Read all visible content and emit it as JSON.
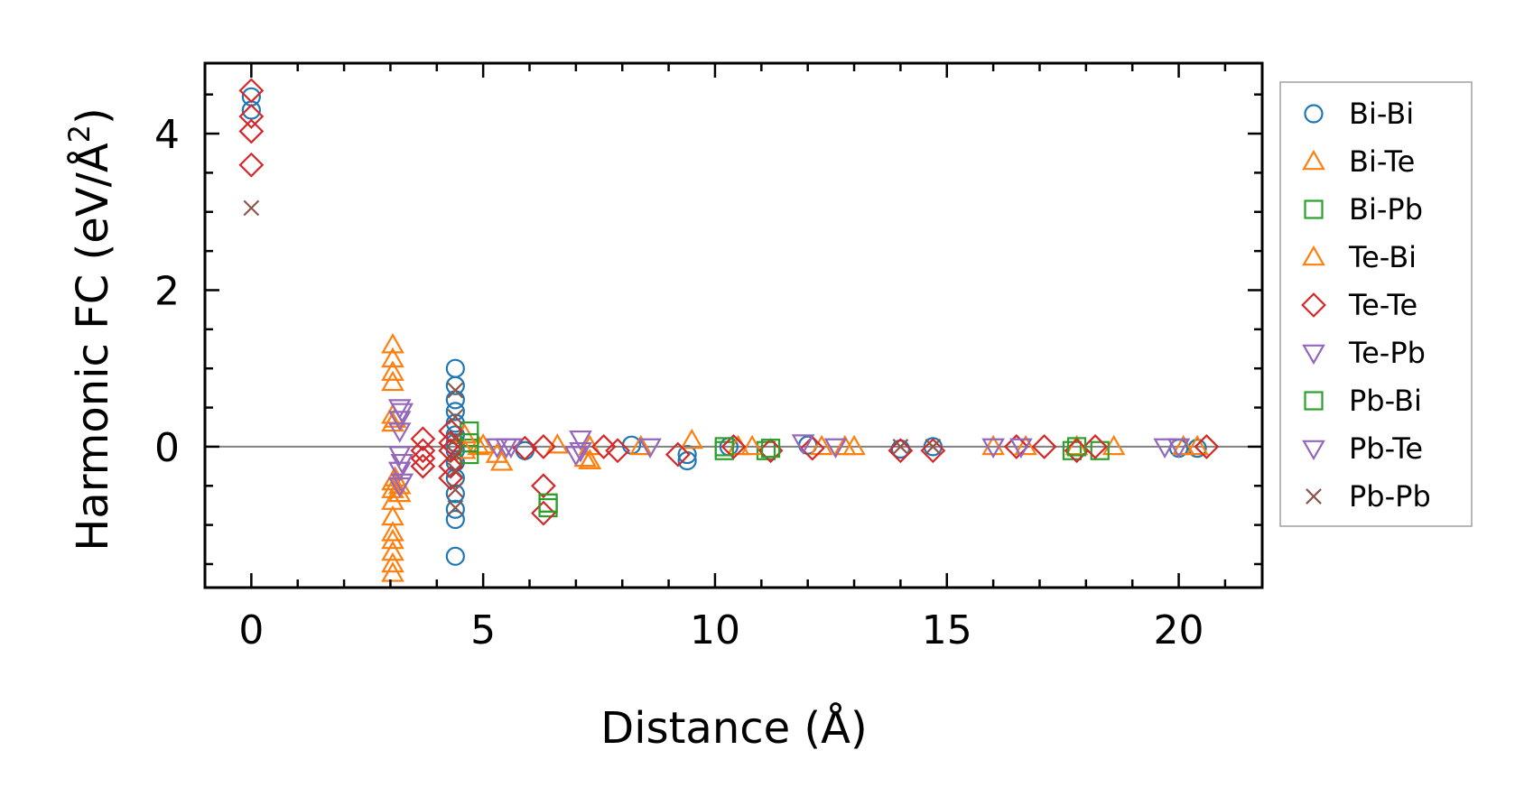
{
  "chart_data": {
    "type": "scatter",
    "xlabel": "Distance (Å)",
    "ylabel_prefix": "Harmonic FC (eV/Å",
    "ylabel_exp": "2",
    "ylabel_suffix": ")",
    "xlim": [
      -1.0,
      21.8
    ],
    "ylim": [
      -1.8,
      4.9
    ],
    "xticks": [
      0,
      5,
      10,
      15,
      20
    ],
    "yticks": [
      0,
      2,
      4
    ],
    "xtick_labels": [
      "0",
      "5",
      "10",
      "15",
      "20"
    ],
    "ytick_labels": [
      "0",
      "2",
      "4"
    ],
    "x_minor_step": 1,
    "y_minor_step": 0.5,
    "zero_line": true,
    "legend_position": "outside right",
    "series": [
      {
        "name": "Bi-Bi",
        "marker": "circle",
        "color": "#1f77b4",
        "points": [
          [
            0,
            4.47
          ],
          [
            0,
            4.3
          ],
          [
            4.4,
            1.0
          ],
          [
            4.4,
            0.78
          ],
          [
            4.4,
            0.6
          ],
          [
            4.4,
            0.45
          ],
          [
            4.4,
            0.3
          ],
          [
            4.4,
            0.15
          ],
          [
            4.4,
            0.05
          ],
          [
            4.4,
            -0.05
          ],
          [
            4.4,
            -0.2
          ],
          [
            4.4,
            -0.4
          ],
          [
            4.4,
            -0.6
          ],
          [
            4.4,
            -0.8
          ],
          [
            4.4,
            -0.93
          ],
          [
            4.4,
            -1.4
          ],
          [
            5.9,
            -0.05
          ],
          [
            8.2,
            0.02
          ],
          [
            9.4,
            -0.18
          ],
          [
            9.4,
            -0.1
          ],
          [
            10.3,
            0.0
          ],
          [
            12.0,
            0.02
          ],
          [
            14.0,
            -0.03
          ],
          [
            14.7,
            0.0
          ],
          [
            20.0,
            -0.02
          ],
          [
            20.4,
            -0.02
          ]
        ]
      },
      {
        "name": "Bi-Te",
        "marker": "triangle-up",
        "color": "#ff7f0e",
        "points": [
          [
            3.05,
            1.3
          ],
          [
            3.05,
            1.12
          ],
          [
            3.05,
            0.95
          ],
          [
            3.05,
            0.82
          ],
          [
            3.05,
            0.4
          ],
          [
            3.05,
            0.3
          ],
          [
            3.05,
            -0.45
          ],
          [
            3.05,
            -0.55
          ],
          [
            3.05,
            -0.7
          ],
          [
            3.05,
            -0.9
          ],
          [
            3.05,
            -1.1
          ],
          [
            3.05,
            -1.2
          ],
          [
            3.05,
            -1.35
          ],
          [
            3.05,
            -1.5
          ],
          [
            3.05,
            -1.62
          ],
          [
            3.2,
            -0.5
          ],
          [
            3.2,
            -0.6
          ],
          [
            4.9,
            0.0
          ],
          [
            5.0,
            0.02
          ],
          [
            5.3,
            -0.1
          ],
          [
            5.4,
            -0.2
          ],
          [
            6.6,
            0.02
          ],
          [
            7.2,
            -0.15
          ],
          [
            7.3,
            -0.18
          ],
          [
            8.4,
            0.0
          ],
          [
            9.5,
            0.08
          ],
          [
            10.5,
            0.0
          ],
          [
            12.3,
            0.0
          ],
          [
            12.8,
            0.0
          ],
          [
            16.0,
            0.0
          ],
          [
            16.7,
            0.0
          ],
          [
            18.6,
            0.0
          ],
          [
            20.1,
            0.0
          ],
          [
            20.4,
            0.0
          ]
        ]
      },
      {
        "name": "Bi-Pb",
        "marker": "square",
        "color": "#2ca02c",
        "points": [
          [
            4.7,
            0.2
          ],
          [
            4.7,
            0.05
          ],
          [
            4.7,
            -0.1
          ],
          [
            6.4,
            -0.72
          ],
          [
            6.4,
            -0.78
          ],
          [
            10.2,
            -0.05
          ],
          [
            11.1,
            -0.05
          ],
          [
            17.7,
            -0.05
          ],
          [
            18.3,
            -0.05
          ]
        ]
      },
      {
        "name": "Te-Bi",
        "marker": "triangle-up",
        "color": "#ff7f0e",
        "points": [
          [
            3.1,
            0.35
          ],
          [
            3.1,
            -0.4
          ],
          [
            4.6,
            0.15
          ],
          [
            4.6,
            -0.05
          ],
          [
            7.3,
            0.0
          ],
          [
            7.3,
            -0.18
          ],
          [
            10.8,
            0.0
          ],
          [
            13.0,
            0.0
          ],
          [
            17.8,
            0.0
          ]
        ]
      },
      {
        "name": "Te-Te",
        "marker": "diamond",
        "color": "#d62728",
        "points": [
          [
            0,
            4.55
          ],
          [
            0,
            4.22
          ],
          [
            0,
            4.03
          ],
          [
            0,
            3.6
          ],
          [
            3.7,
            0.1
          ],
          [
            3.7,
            -0.05
          ],
          [
            3.7,
            -0.15
          ],
          [
            3.7,
            -0.25
          ],
          [
            4.3,
            0.2
          ],
          [
            4.3,
            0.05
          ],
          [
            4.3,
            -0.05
          ],
          [
            4.3,
            -0.25
          ],
          [
            4.3,
            -0.4
          ],
          [
            5.9,
            -0.02
          ],
          [
            6.3,
            0.0
          ],
          [
            6.3,
            -0.5
          ],
          [
            6.3,
            -0.85
          ],
          [
            7.6,
            0.0
          ],
          [
            7.9,
            -0.05
          ],
          [
            9.2,
            -0.1
          ],
          [
            10.4,
            0.0
          ],
          [
            11.2,
            -0.05
          ],
          [
            12.1,
            -0.02
          ],
          [
            14.0,
            -0.05
          ],
          [
            14.7,
            -0.05
          ],
          [
            16.5,
            0.0
          ],
          [
            17.1,
            0.0
          ],
          [
            17.8,
            -0.05
          ],
          [
            18.2,
            0.0
          ],
          [
            20.6,
            0.0
          ]
        ]
      },
      {
        "name": "Te-Pb",
        "marker": "triangle-down",
        "color": "#9467bd",
        "points": [
          [
            3.2,
            0.5
          ],
          [
            3.2,
            0.35
          ],
          [
            3.2,
            0.2
          ],
          [
            3.2,
            -0.1
          ],
          [
            3.2,
            -0.3
          ],
          [
            3.2,
            -0.5
          ],
          [
            5.3,
            0.0
          ],
          [
            5.6,
            0.0
          ],
          [
            7.1,
            0.1
          ],
          [
            7.1,
            -0.05
          ],
          [
            8.6,
            0.0
          ],
          [
            11.9,
            0.05
          ],
          [
            16.0,
            0.0
          ],
          [
            19.7,
            0.0
          ],
          [
            20.0,
            0.0
          ]
        ]
      },
      {
        "name": "Pb-Bi",
        "marker": "square",
        "color": "#2ca02c",
        "points": [
          [
            4.7,
            0.05
          ],
          [
            6.4,
            -0.72
          ],
          [
            10.2,
            0.0
          ],
          [
            11.2,
            -0.02
          ],
          [
            17.8,
            0.0
          ]
        ]
      },
      {
        "name": "Pb-Te",
        "marker": "triangle-down",
        "color": "#9467bd",
        "points": [
          [
            3.25,
            0.45
          ],
          [
            3.25,
            -0.2
          ],
          [
            3.25,
            -0.45
          ],
          [
            5.5,
            0.0
          ],
          [
            7.0,
            -0.1
          ],
          [
            12.6,
            0.0
          ],
          [
            16.6,
            0.0
          ]
        ]
      },
      {
        "name": "Pb-Pb",
        "marker": "x",
        "color": "#8c564b",
        "points": [
          [
            0,
            3.05
          ],
          [
            4.4,
            0.72
          ],
          [
            4.4,
            0.38
          ],
          [
            4.4,
            0.1
          ],
          [
            4.4,
            -0.1
          ],
          [
            4.4,
            -0.3
          ],
          [
            4.4,
            -0.55
          ],
          [
            4.4,
            -0.78
          ],
          [
            14.0,
            0.0
          ],
          [
            14.7,
            0.0
          ]
        ]
      }
    ]
  }
}
